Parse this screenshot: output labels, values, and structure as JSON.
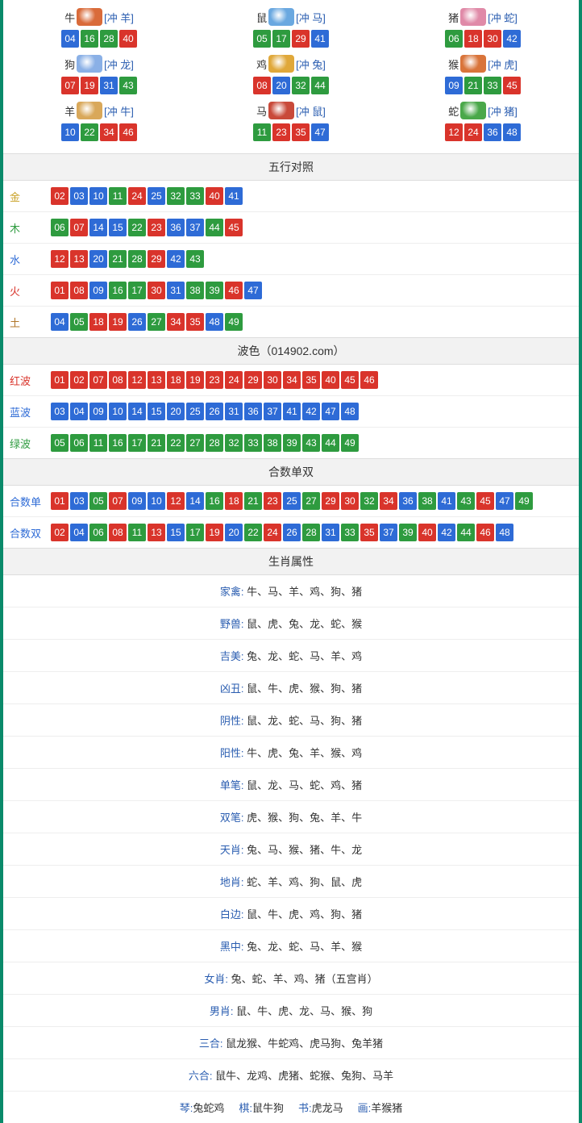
{
  "colors": {
    "red": "#d9342b",
    "blue": "#2e6bd6",
    "green": "#2e9b3f",
    "border": "#0a8a6a"
  },
  "ball_color_map": {
    "01": "red",
    "02": "red",
    "07": "red",
    "08": "red",
    "12": "red",
    "13": "red",
    "18": "red",
    "19": "red",
    "23": "red",
    "24": "red",
    "29": "red",
    "30": "red",
    "34": "red",
    "35": "red",
    "40": "red",
    "45": "red",
    "46": "red",
    "03": "blue",
    "04": "blue",
    "09": "blue",
    "10": "blue",
    "14": "blue",
    "15": "blue",
    "20": "blue",
    "25": "blue",
    "26": "blue",
    "31": "blue",
    "36": "blue",
    "37": "blue",
    "41": "blue",
    "42": "blue",
    "47": "blue",
    "48": "blue",
    "05": "green",
    "06": "green",
    "11": "green",
    "16": "green",
    "17": "green",
    "21": "green",
    "22": "green",
    "27": "green",
    "28": "green",
    "32": "green",
    "33": "green",
    "38": "green",
    "39": "green",
    "43": "green",
    "44": "green",
    "49": "green"
  },
  "zodiac_icon_colors": {
    "牛": "#d96b3a",
    "鼠": "#6aa8e0",
    "猪": "#e08aa8",
    "狗": "#8ab0e6",
    "鸡": "#e0a83a",
    "猴": "#d9743a",
    "羊": "#d9a85a",
    "马": "#c94a3a",
    "蛇": "#4aa84a"
  },
  "zodiac": [
    {
      "name": "牛",
      "clash": "[冲 羊]",
      "nums": [
        "04",
        "16",
        "28",
        "40"
      ]
    },
    {
      "name": "鼠",
      "clash": "[冲 马]",
      "nums": [
        "05",
        "17",
        "29",
        "41"
      ]
    },
    {
      "name": "猪",
      "clash": "[冲 蛇]",
      "nums": [
        "06",
        "18",
        "30",
        "42"
      ]
    },
    {
      "name": "狗",
      "clash": "[冲 龙]",
      "nums": [
        "07",
        "19",
        "31",
        "43"
      ]
    },
    {
      "name": "鸡",
      "clash": "[冲 兔]",
      "nums": [
        "08",
        "20",
        "32",
        "44"
      ]
    },
    {
      "name": "猴",
      "clash": "[冲 虎]",
      "nums": [
        "09",
        "21",
        "33",
        "45"
      ]
    },
    {
      "name": "羊",
      "clash": "[冲 牛]",
      "nums": [
        "10",
        "22",
        "34",
        "46"
      ]
    },
    {
      "name": "马",
      "clash": "[冲 鼠]",
      "nums": [
        "11",
        "23",
        "35",
        "47"
      ]
    },
    {
      "name": "蛇",
      "clash": "[冲 猪]",
      "nums": [
        "12",
        "24",
        "36",
        "48"
      ]
    }
  ],
  "wuxing": {
    "title": "五行对照",
    "label_colors": {
      "金": "#c9a227",
      "木": "#2e9b3f",
      "水": "#2e6bd6",
      "火": "#d9342b",
      "土": "#b0762a"
    },
    "rows": [
      {
        "label": "金",
        "nums": [
          "02",
          "03",
          "10",
          "11",
          "24",
          "25",
          "32",
          "33",
          "40",
          "41"
        ]
      },
      {
        "label": "木",
        "nums": [
          "06",
          "07",
          "14",
          "15",
          "22",
          "23",
          "36",
          "37",
          "44",
          "45"
        ]
      },
      {
        "label": "水",
        "nums": [
          "12",
          "13",
          "20",
          "21",
          "28",
          "29",
          "42",
          "43"
        ]
      },
      {
        "label": "火",
        "nums": [
          "01",
          "08",
          "09",
          "16",
          "17",
          "30",
          "31",
          "38",
          "39",
          "46",
          "47"
        ]
      },
      {
        "label": "土",
        "nums": [
          "04",
          "05",
          "18",
          "19",
          "26",
          "27",
          "34",
          "35",
          "48",
          "49"
        ]
      }
    ]
  },
  "bose": {
    "title": "波色（014902.com）",
    "label_colors": {
      "红波": "#d9342b",
      "蓝波": "#2e6bd6",
      "绿波": "#2e9b3f"
    },
    "rows": [
      {
        "label": "红波",
        "nums": [
          "01",
          "02",
          "07",
          "08",
          "12",
          "13",
          "18",
          "19",
          "23",
          "24",
          "29",
          "30",
          "34",
          "35",
          "40",
          "45",
          "46"
        ]
      },
      {
        "label": "蓝波",
        "nums": [
          "03",
          "04",
          "09",
          "10",
          "14",
          "15",
          "20",
          "25",
          "26",
          "31",
          "36",
          "37",
          "41",
          "42",
          "47",
          "48"
        ]
      },
      {
        "label": "绿波",
        "nums": [
          "05",
          "06",
          "11",
          "16",
          "17",
          "21",
          "22",
          "27",
          "28",
          "32",
          "33",
          "38",
          "39",
          "43",
          "44",
          "49"
        ]
      }
    ]
  },
  "heshu": {
    "title": "合数单双",
    "label_color": "#2e6bd6",
    "rows": [
      {
        "label": "合数单",
        "nums": [
          "01",
          "03",
          "05",
          "07",
          "09",
          "10",
          "12",
          "14",
          "16",
          "18",
          "21",
          "23",
          "25",
          "27",
          "29",
          "30",
          "32",
          "34",
          "36",
          "38",
          "41",
          "43",
          "45",
          "47",
          "49"
        ]
      },
      {
        "label": "合数双",
        "nums": [
          "02",
          "04",
          "06",
          "08",
          "11",
          "13",
          "15",
          "17",
          "19",
          "20",
          "22",
          "24",
          "26",
          "28",
          "31",
          "33",
          "35",
          "37",
          "39",
          "40",
          "42",
          "44",
          "46",
          "48"
        ]
      }
    ]
  },
  "shuxing": {
    "title": "生肖属性",
    "rows": [
      {
        "label": "家禽:",
        "text": "牛、马、羊、鸡、狗、猪"
      },
      {
        "label": "野兽:",
        "text": "鼠、虎、兔、龙、蛇、猴"
      },
      {
        "label": "吉美:",
        "text": "兔、龙、蛇、马、羊、鸡"
      },
      {
        "label": "凶丑:",
        "text": "鼠、牛、虎、猴、狗、猪"
      },
      {
        "label": "阴性:",
        "text": "鼠、龙、蛇、马、狗、猪"
      },
      {
        "label": "阳性:",
        "text": "牛、虎、兔、羊、猴、鸡"
      },
      {
        "label": "单笔:",
        "text": "鼠、龙、马、蛇、鸡、猪"
      },
      {
        "label": "双笔:",
        "text": "虎、猴、狗、兔、羊、牛"
      },
      {
        "label": "天肖:",
        "text": "兔、马、猴、猪、牛、龙"
      },
      {
        "label": "地肖:",
        "text": "蛇、羊、鸡、狗、鼠、虎"
      },
      {
        "label": "白边:",
        "text": "鼠、牛、虎、鸡、狗、猪"
      },
      {
        "label": "黑中:",
        "text": "兔、龙、蛇、马、羊、猴"
      },
      {
        "label": "女肖:",
        "text": "兔、蛇、羊、鸡、猪（五宫肖）"
      },
      {
        "label": "男肖:",
        "text": "鼠、牛、虎、龙、马、猴、狗"
      },
      {
        "label": "三合:",
        "text": "鼠龙猴、牛蛇鸡、虎马狗、兔羊猪"
      },
      {
        "label": "六合:",
        "text": "鼠牛、龙鸡、虎猪、蛇猴、兔狗、马羊"
      }
    ]
  },
  "four_arts": [
    {
      "label": "琴:",
      "text": "兔蛇鸡"
    },
    {
      "label": "棋:",
      "text": "鼠牛狗"
    },
    {
      "label": "书:",
      "text": "虎龙马"
    },
    {
      "label": "画:",
      "text": "羊猴猪"
    }
  ]
}
